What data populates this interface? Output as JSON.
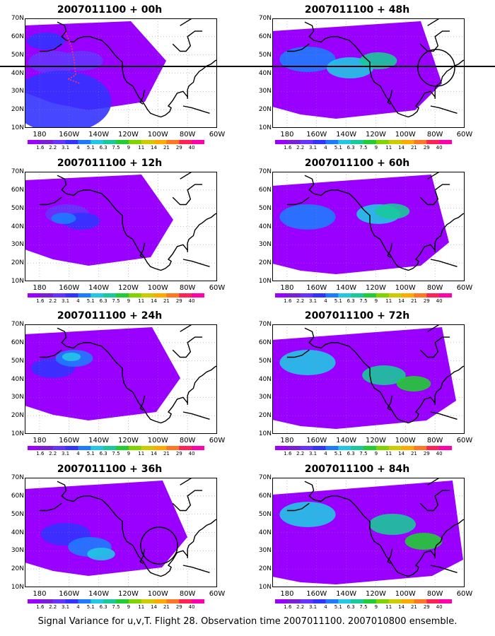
{
  "panels": [
    {
      "id": "p00",
      "title": "2007011100 + 00h",
      "level": 0
    },
    {
      "id": "p12",
      "title": "2007011100 + 12h",
      "level": 1
    },
    {
      "id": "p24",
      "title": "2007011100 + 24h",
      "level": 2
    },
    {
      "id": "p36",
      "title": "2007011100 + 36h",
      "level": 3
    },
    {
      "id": "p48",
      "title": "2007011100 + 48h",
      "level": 4
    },
    {
      "id": "p60",
      "title": "2007011100 + 60h",
      "level": 5
    },
    {
      "id": "p72",
      "title": "2007011100 + 72h",
      "level": 6
    },
    {
      "id": "p84",
      "title": "2007011100 + 84h",
      "level": 7
    }
  ],
  "axes": {
    "lat_labels": [
      "70N",
      "60N",
      "50N",
      "40N",
      "30N",
      "20N",
      "10N"
    ],
    "lon_labels": [
      "180",
      "160W",
      "140W",
      "120W",
      "100W",
      "80W",
      "60W"
    ]
  },
  "colorbar": {
    "labels": [
      "1.6",
      "2.2",
      "3.1",
      "4",
      "5.1",
      "6.3",
      "7.5",
      "9",
      "11",
      "14",
      "21",
      "29",
      "40"
    ],
    "colors": [
      "#9900ff",
      "#7a1fd6",
      "#6633ff",
      "#3333ff",
      "#1e7bff",
      "#22c7e6",
      "#1ac99a",
      "#22cc33",
      "#7fd400",
      "#cccc00",
      "#ffaa00",
      "#ff7722",
      "#ff2255",
      "#ff00aa"
    ]
  },
  "caption": "Signal Variance for u,v,T. Flight 28. Observation time 2007011100. 2007010800 ensemble."
}
